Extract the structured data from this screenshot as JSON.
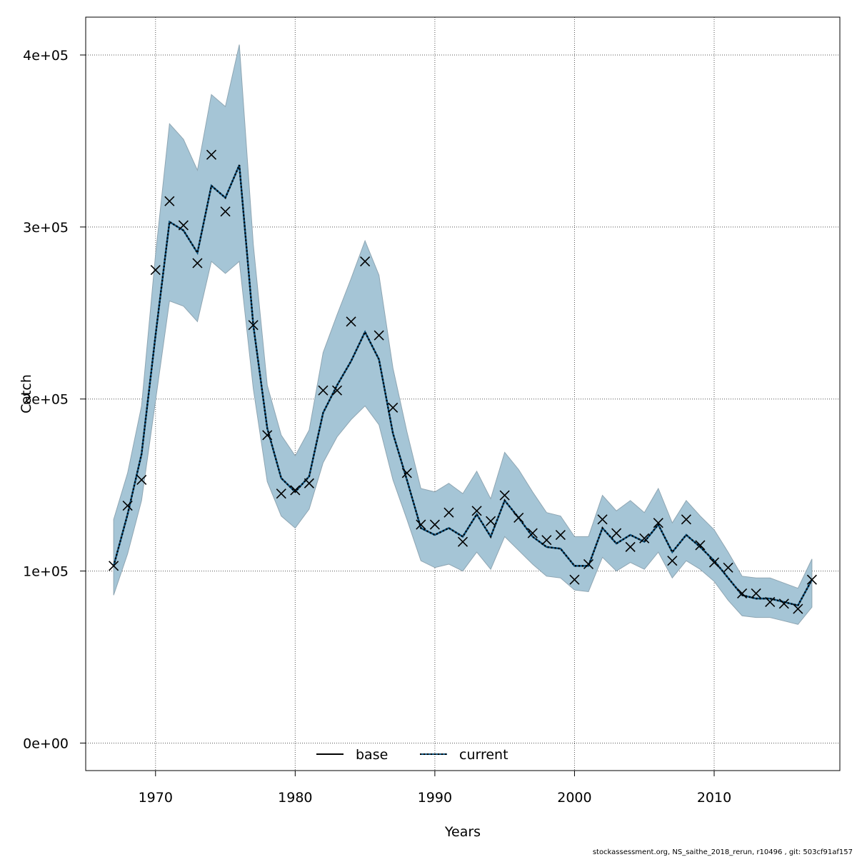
{
  "footer_text": "stockassessment.org, NS_saithe_2018_rerun, r10496 , git: 503cf91af157",
  "colors": {
    "band_fill": "#a5c5d6",
    "band_stroke": "#8fa6b3",
    "current_line": "#0b4f7a",
    "base_line": "#000000",
    "grid": "#555555"
  },
  "chart_data": {
    "type": "line",
    "xlabel": "Years",
    "ylabel": "Catch",
    "xlim": [
      1965,
      2019
    ],
    "ylim": [
      -16000,
      422000
    ],
    "x_ticks": [
      1970,
      1980,
      1990,
      2000,
      2010
    ],
    "x_tick_labels": [
      "1970",
      "1980",
      "1990",
      "2000",
      "2010"
    ],
    "y_ticks": [
      0,
      100000,
      200000,
      300000,
      400000
    ],
    "y_tick_labels": [
      "0e+00",
      "1e+05",
      "2e+05",
      "3e+05",
      "4e+05"
    ],
    "grid": true,
    "legend_position": "bottom",
    "legend": [
      {
        "name": "base",
        "style": "solid"
      },
      {
        "name": "current",
        "style": "dotted"
      }
    ],
    "years": [
      1967,
      1968,
      1969,
      1970,
      1971,
      1972,
      1973,
      1974,
      1975,
      1976,
      1977,
      1978,
      1979,
      1980,
      1981,
      1982,
      1983,
      1984,
      1985,
      1986,
      1987,
      1988,
      1989,
      1990,
      1991,
      1992,
      1993,
      1994,
      1995,
      1996,
      1997,
      1998,
      1999,
      2000,
      2001,
      2002,
      2003,
      2004,
      2005,
      2006,
      2007,
      2008,
      2009,
      2010,
      2011,
      2012,
      2013,
      2014,
      2015,
      2016,
      2017
    ],
    "observed": [
      103000,
      138000,
      153000,
      275000,
      315000,
      301000,
      279000,
      342000,
      309000,
      null,
      243000,
      179000,
      145000,
      147000,
      151000,
      205000,
      205000,
      245000,
      280000,
      237000,
      195000,
      157000,
      127000,
      127000,
      134000,
      117000,
      135000,
      129000,
      144000,
      131000,
      122000,
      118000,
      121000,
      95000,
      104000,
      130000,
      122000,
      114000,
      119000,
      128000,
      106000,
      130000,
      115000,
      105000,
      102000,
      87000,
      87000,
      82000,
      81000,
      78000,
      95000
    ],
    "estimate": [
      103000,
      133000,
      168000,
      237000,
      303000,
      298000,
      285000,
      324000,
      317000,
      336000,
      243000,
      183000,
      154000,
      146000,
      155000,
      192000,
      208000,
      222000,
      239000,
      223000,
      180000,
      153000,
      125000,
      121000,
      125000,
      120000,
      133000,
      120000,
      141000,
      131000,
      120000,
      114000,
      113000,
      103000,
      103000,
      125000,
      116000,
      121000,
      117000,
      127000,
      111000,
      121000,
      114000,
      106000,
      96000,
      86000,
      84000,
      84000,
      82000,
      80000,
      95000
    ],
    "upper": [
      130000,
      157000,
      196000,
      284000,
      360000,
      351000,
      333000,
      377000,
      370000,
      406000,
      290000,
      208000,
      179000,
      167000,
      182000,
      227000,
      249000,
      270000,
      292000,
      272000,
      218000,
      181000,
      148000,
      146000,
      151000,
      145000,
      158000,
      142000,
      169000,
      159000,
      146000,
      134000,
      132000,
      120000,
      120000,
      144000,
      135000,
      141000,
      134000,
      148000,
      128000,
      141000,
      132000,
      124000,
      111000,
      97000,
      96000,
      96000,
      93000,
      90000,
      107000
    ],
    "lower": [
      86000,
      110000,
      141000,
      199000,
      257000,
      254000,
      245000,
      280000,
      273000,
      280000,
      206000,
      152000,
      132000,
      125000,
      136000,
      163000,
      178000,
      188000,
      196000,
      185000,
      153000,
      130000,
      106000,
      102000,
      104000,
      100000,
      111000,
      101000,
      120000,
      112000,
      104000,
      97000,
      96000,
      89000,
      88000,
      108000,
      100000,
      105000,
      101000,
      111000,
      96000,
      106000,
      101000,
      94000,
      83000,
      74000,
      73000,
      73000,
      71000,
      69000,
      79000
    ]
  }
}
